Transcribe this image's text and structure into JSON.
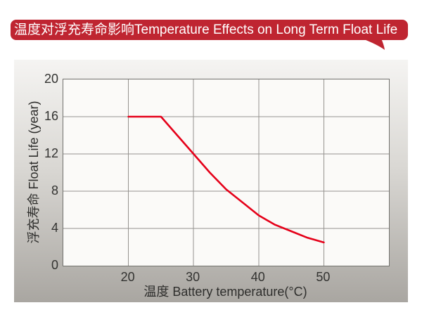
{
  "banner": {
    "title_zh": "温度对浮充寿命影响",
    "title_en": "Temperature Effects on Long Term Float Life",
    "bg_color": "#bf2531",
    "text_color": "#ffffff"
  },
  "chart_data": {
    "type": "line",
    "title": "温度对浮充寿命影响 Temperature Effects on Long Term Float Life",
    "xlabel": "温度  Battery temperature(°C)",
    "ylabel": "浮充寿命 Float Life (year)",
    "xlim": [
      10,
      60
    ],
    "ylim": [
      0,
      20
    ],
    "xticks": [
      20,
      30,
      40,
      50
    ],
    "yticks": [
      0,
      4,
      8,
      12,
      16,
      20
    ],
    "grid": true,
    "grid_color": "#95938f",
    "plot_bg_color": "#fbfaf8",
    "line_color": "#e50019",
    "series": [
      {
        "name": "float-life-vs-temperature",
        "x": [
          20,
          25,
          27.5,
          30,
          32.5,
          35,
          37.5,
          40,
          42.5,
          45,
          47.5,
          50
        ],
        "y": [
          16,
          16,
          14,
          12,
          10,
          8.2,
          6.8,
          5.4,
          4.4,
          3.7,
          3.0,
          2.5
        ]
      }
    ]
  }
}
